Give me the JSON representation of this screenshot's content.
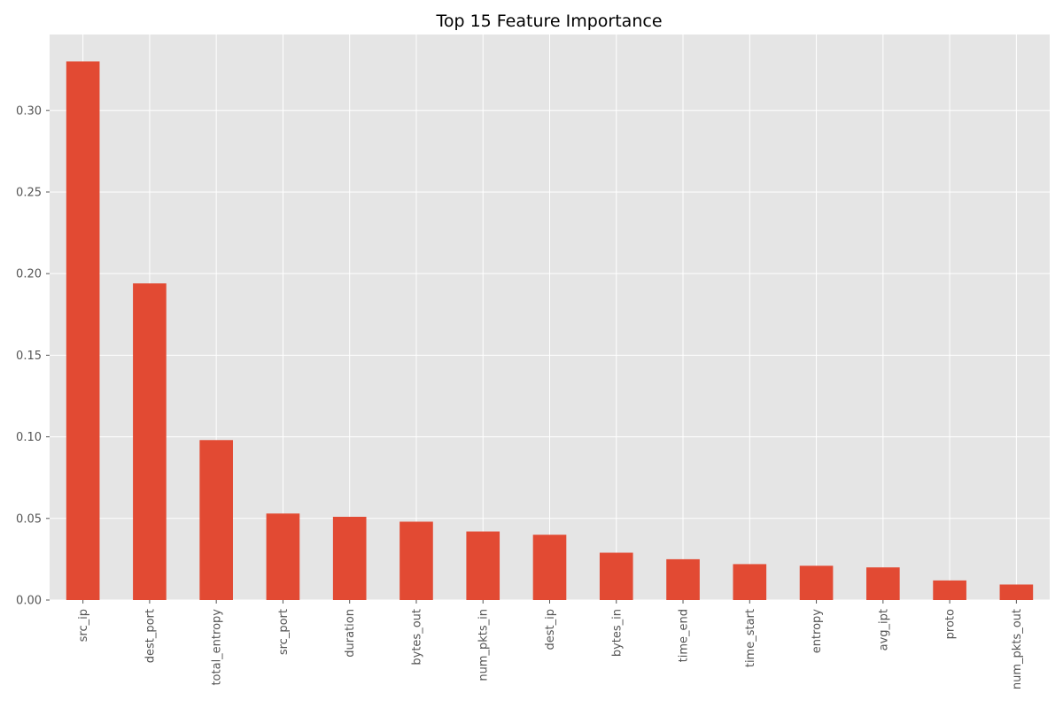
{
  "chart_data": {
    "type": "bar",
    "title": "Top 15 Feature Importance",
    "xlabel": "",
    "ylabel": "",
    "categories": [
      "src_ip",
      "dest_port",
      "total_entropy",
      "src_port",
      "duration",
      "bytes_out",
      "num_pkts_in",
      "dest_ip",
      "bytes_in",
      "time_end",
      "time_start",
      "entropy",
      "avg_ipt",
      "proto",
      "num_pkts_out"
    ],
    "values": [
      0.33,
      0.194,
      0.098,
      0.053,
      0.051,
      0.048,
      0.042,
      0.04,
      0.029,
      0.025,
      0.022,
      0.021,
      0.02,
      0.012,
      0.0095
    ],
    "ylim": [
      0,
      0.3465
    ],
    "yticks": [
      "0.00",
      "0.05",
      "0.10",
      "0.15",
      "0.20",
      "0.25",
      "0.30"
    ],
    "grid": true,
    "colors": {
      "bar": "#E24A33",
      "plot_background": "#E5E5E5",
      "grid": "#FFFFFF",
      "tick_text": "#555555"
    }
  }
}
